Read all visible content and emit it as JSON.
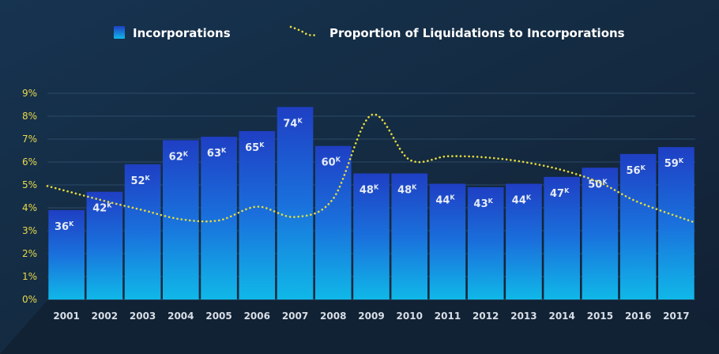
{
  "chart_data": {
    "type": "bar",
    "categories": [
      "2001",
      "2002",
      "2003",
      "2004",
      "2005",
      "2006",
      "2007",
      "2008",
      "2009",
      "2010",
      "2011",
      "2012",
      "2013",
      "2014",
      "2015",
      "2016",
      "2017"
    ],
    "series": [
      {
        "name": "Incorporations",
        "type": "bar",
        "axis": "left",
        "values_pct_scale": [
          3.9,
          4.7,
          5.9,
          6.95,
          7.1,
          7.35,
          8.4,
          6.7,
          5.5,
          5.5,
          5.05,
          4.9,
          5.05,
          5.35,
          5.75,
          6.35,
          6.65
        ],
        "data_labels": [
          "36",
          "42",
          "52",
          "62",
          "63",
          "65",
          "74",
          "60",
          "48",
          "48",
          "44",
          "43",
          "44",
          "47",
          "50",
          "56",
          "59"
        ],
        "label_suffix": "K",
        "color": "#1f3fc4",
        "color_bottom": "#10b8e8"
      },
      {
        "name": "Proportion of Liquidations to Incorporations",
        "type": "line",
        "style": "dotted",
        "axis": "left",
        "values": [
          4.95,
          4.3,
          3.9,
          3.5,
          3.45,
          4.05,
          3.6,
          4.4,
          8.05,
          6.1,
          6.25,
          6.2,
          6.0,
          5.65,
          5.1,
          4.25,
          3.35
        ],
        "color": "#e6dc3c"
      }
    ],
    "y_ticks": [
      "0%",
      "1%",
      "2%",
      "3%",
      "4%",
      "5%",
      "6%",
      "7%",
      "8%",
      "9%"
    ],
    "ylim": [
      0,
      9
    ],
    "grid": true,
    "legend_position": "top",
    "title": "",
    "xlabel": "",
    "ylabel": ""
  }
}
